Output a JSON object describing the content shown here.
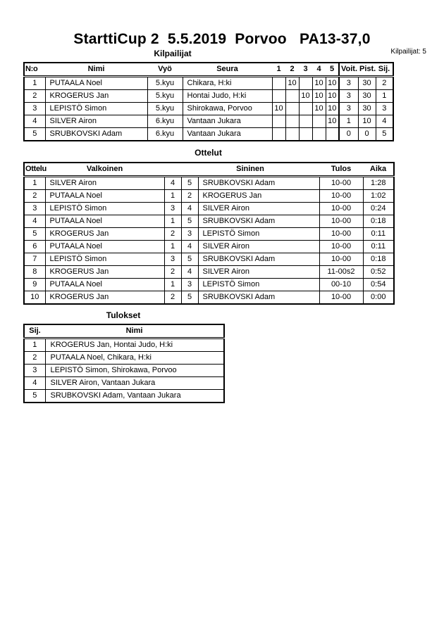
{
  "page": {
    "title": "StarttiCup 2  5.5.2019  Porvoo   PA13-37,0",
    "competitors_count": "Kilpailijat: 5"
  },
  "sections": {
    "kilpailijat": {
      "heading": "Kilpailijat",
      "header_labels": [
        "N:o",
        "Nimi",
        "Vyö",
        "Seura",
        "1",
        "2",
        "3",
        "4",
        "5",
        "Voit.",
        "Pist.",
        "Sij."
      ],
      "rows": [
        [
          "1",
          "PUTAALA Noel",
          "5.kyu",
          "Chikara, H:ki",
          "",
          "10",
          "",
          "10",
          "10",
          "3",
          "30",
          "2"
        ],
        [
          "2",
          "KROGERUS Jan",
          "5.kyu",
          "Hontai Judo, H:ki",
          "",
          "",
          "10",
          "10",
          "10",
          "3",
          "30",
          "1"
        ],
        [
          "3",
          "LEPISTÖ Simon",
          "5.kyu",
          "Shirokawa, Porvoo",
          "10",
          "",
          "",
          "10",
          "10",
          "3",
          "30",
          "3"
        ],
        [
          "4",
          "SILVER Airon",
          "6.kyu",
          "Vantaan Jukara",
          "",
          "",
          "",
          "",
          "10",
          "1",
          "10",
          "4"
        ],
        [
          "5",
          "SRUBKOVSKI Adam",
          "6.kyu",
          "Vantaan Jukara",
          "",
          "",
          "",
          "",
          "",
          "0",
          "0",
          "5"
        ]
      ]
    },
    "ottelut": {
      "heading": "Ottelut",
      "header_labels": [
        "Ottelu",
        "Valkoinen",
        "",
        "Sininen",
        "Tulos",
        "Aika"
      ],
      "rows": [
        [
          "1",
          "SILVER Airon",
          "4",
          "5",
          "SRUBKOVSKI Adam",
          "10-00",
          "1:28"
        ],
        [
          "2",
          "PUTAALA Noel",
          "1",
          "2",
          "KROGERUS Jan",
          "10-00",
          "1:02"
        ],
        [
          "3",
          "LEPISTÖ Simon",
          "3",
          "4",
          "SILVER Airon",
          "10-00",
          "0:24"
        ],
        [
          "4",
          "PUTAALA Noel",
          "1",
          "5",
          "SRUBKOVSKI Adam",
          "10-00",
          "0:18"
        ],
        [
          "5",
          "KROGERUS Jan",
          "2",
          "3",
          "LEPISTÖ Simon",
          "10-00",
          "0:11"
        ],
        [
          "6",
          "PUTAALA Noel",
          "1",
          "4",
          "SILVER Airon",
          "10-00",
          "0:11"
        ],
        [
          "7",
          "LEPISTÖ Simon",
          "3",
          "5",
          "SRUBKOVSKI Adam",
          "10-00",
          "0:18"
        ],
        [
          "8",
          "KROGERUS Jan",
          "2",
          "4",
          "SILVER Airon",
          "11-00s2",
          "0:52"
        ],
        [
          "9",
          "PUTAALA Noel",
          "1",
          "3",
          "LEPISTÖ Simon",
          "00-10",
          "0:54"
        ],
        [
          "10",
          "KROGERUS Jan",
          "2",
          "5",
          "SRUBKOVSKI Adam",
          "10-00",
          "0:00"
        ]
      ]
    },
    "tulokset": {
      "heading": "Tulokset",
      "header_labels": [
        "Sij.",
        "Nimi"
      ],
      "rows": [
        [
          "1",
          "KROGERUS Jan, Hontai Judo, H:ki"
        ],
        [
          "2",
          "PUTAALA Noel, Chikara, H:ki"
        ],
        [
          "3",
          "LEPISTÖ Simon, Shirokawa, Porvoo"
        ],
        [
          "4",
          "SILVER Airon, Vantaan Jukara"
        ],
        [
          "5",
          "SRUBKOVSKI Adam, Vantaan Jukara"
        ]
      ]
    }
  }
}
